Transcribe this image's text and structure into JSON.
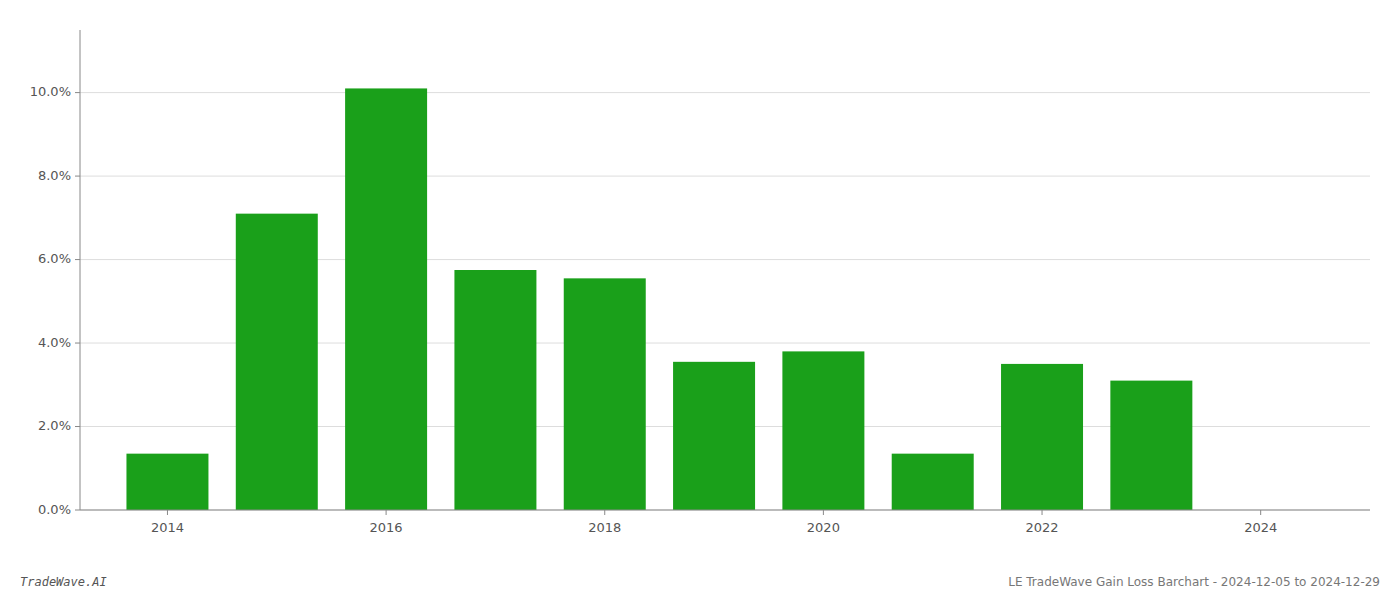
{
  "chart_data": {
    "type": "bar",
    "x": [
      2014,
      2015,
      2016,
      2017,
      2018,
      2019,
      2020,
      2021,
      2022,
      2023
    ],
    "values": [
      0.0135,
      0.071,
      0.101,
      0.0575,
      0.0555,
      0.0355,
      0.038,
      0.0135,
      0.035,
      0.031
    ],
    "color": "#1aa01a",
    "xlim": [
      2013.2,
      2025.0
    ],
    "xticks": [
      2014,
      2016,
      2018,
      2020,
      2022,
      2024
    ],
    "ylim": [
      0,
      0.115
    ],
    "yticks": [
      {
        "value": 0.0,
        "label": "0.0%"
      },
      {
        "value": 0.02,
        "label": "2.0%"
      },
      {
        "value": 0.04,
        "label": "4.0%"
      },
      {
        "value": 0.06,
        "label": "6.0%"
      },
      {
        "value": 0.08,
        "label": "8.0%"
      },
      {
        "value": 0.1,
        "label": "10.0%"
      }
    ],
    "grid": true,
    "annotations": [
      "TradeWave.AI",
      "LE TradeWave Gain Loss Barchart - 2024-12-05 to 2024-12-29"
    ]
  }
}
